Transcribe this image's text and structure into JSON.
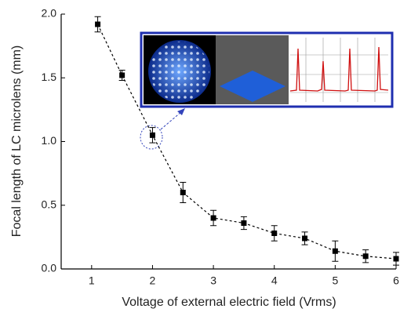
{
  "chart_data": {
    "type": "errorbar-line",
    "x_label": "Voltage of external electric field (Vrms)",
    "y_label": "Focal length of LC microlens (mm)",
    "x": [
      1.1,
      1.5,
      2,
      2.5,
      3,
      3.5,
      4,
      4.5,
      5,
      5.5,
      6
    ],
    "values": [
      1.92,
      1.52,
      1.05,
      0.6,
      0.4,
      0.36,
      0.28,
      0.24,
      0.14,
      0.1,
      0.08
    ],
    "errors": [
      0.06,
      0.04,
      0.06,
      0.08,
      0.06,
      0.05,
      0.06,
      0.05,
      0.08,
      0.05,
      0.05
    ],
    "color": "#000000",
    "xlim": [
      0.5,
      6
    ],
    "xticks": [
      1,
      2,
      3,
      4,
      5,
      6
    ],
    "ylim": [
      0,
      2.0
    ],
    "yticks": [
      {
        "value": 0,
        "label": "0.0"
      },
      {
        "value": 0.5,
        "label": "0.5"
      },
      {
        "value": 1,
        "label": "1.0"
      },
      {
        "value": 1.5,
        "label": "1.5"
      },
      {
        "value": 2,
        "label": "2.0"
      }
    ]
  }
}
